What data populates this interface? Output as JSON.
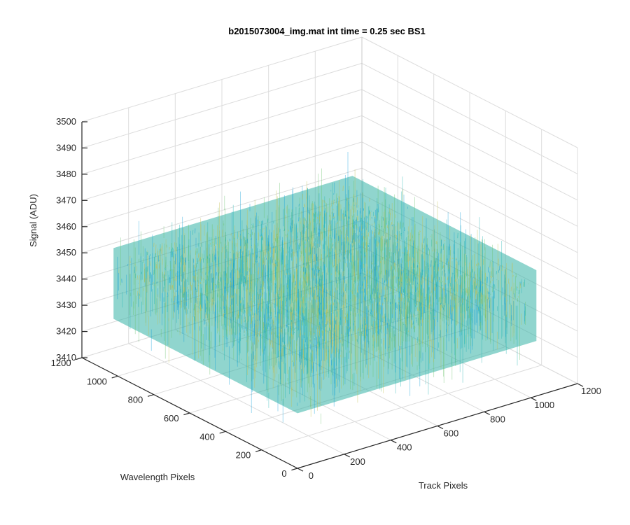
{
  "chart_data": {
    "type": "surface",
    "title": "b2015073004_img.mat int time = 0.25 sec   BS1",
    "xlabel": "Track Pixels",
    "ylabel": "Wavelength Pixels",
    "zlabel": "Signal (ADU)",
    "xlim": [
      0,
      1200
    ],
    "ylim": [
      0,
      1200
    ],
    "zlim": [
      3410,
      3500
    ],
    "x_ticks": [
      0,
      200,
      400,
      600,
      800,
      1000,
      1200
    ],
    "y_ticks": [
      0,
      200,
      400,
      600,
      800,
      1000,
      1200
    ],
    "z_ticks": [
      3410,
      3420,
      3430,
      3440,
      3450,
      3460,
      3470,
      3480,
      3490,
      3500
    ],
    "surface": {
      "x_range": [
        0,
        1024
      ],
      "y_range": [
        0,
        1024
      ],
      "mean_level": 3445,
      "noise_range": [
        3415,
        3490
      ],
      "colormap": "parula",
      "colors": [
        "#0e9fd8",
        "#21b4b2",
        "#69c36e",
        "#c3bf52"
      ]
    },
    "grid": true
  }
}
